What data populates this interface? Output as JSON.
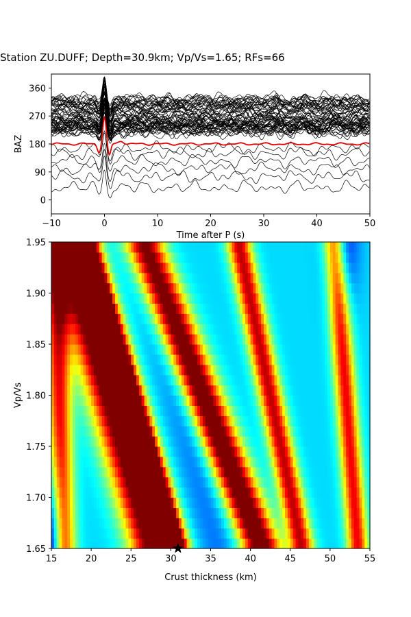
{
  "title": "Station ZU.DUFF; Depth=30.9km; Vp/Vs=1.65; RFs=66",
  "chart_data": [
    {
      "type": "line",
      "title": "Station ZU.DUFF; Depth=30.9km; Vp/Vs=1.65; RFs=66",
      "xlabel": "Time after P (s)",
      "ylabel": "BAZ",
      "xlim": [
        -10,
        50
      ],
      "ylim": [
        -45,
        405
      ],
      "xticks": [
        "−10",
        "0",
        "10",
        "20",
        "30",
        "40",
        "50"
      ],
      "xtick_values": [
        -10,
        0,
        10,
        20,
        30,
        40,
        50
      ],
      "yticks": [
        "0",
        "90",
        "180",
        "270",
        "360"
      ],
      "ytick_values": [
        0,
        90,
        180,
        270,
        360
      ],
      "trace_count": 66,
      "stacked_trace": {
        "baseline": 180,
        "color": "#e00000"
      },
      "trace_color": "#000000",
      "grid": false
    },
    {
      "type": "heatmap",
      "xlabel": "Crust thickness (km)",
      "ylabel": "Vp/Vs",
      "xlim": [
        15,
        55
      ],
      "ylim": [
        1.65,
        1.95
      ],
      "xticks": [
        "15",
        "20",
        "25",
        "30",
        "35",
        "40",
        "45",
        "50",
        "55"
      ],
      "xtick_values": [
        15,
        20,
        25,
        30,
        35,
        40,
        45,
        50,
        55
      ],
      "yticks": [
        "1.65",
        "1.70",
        "1.75",
        "1.80",
        "1.85",
        "1.90",
        "1.95"
      ],
      "ytick_values": [
        1.65,
        1.7,
        1.75,
        1.8,
        1.85,
        1.9,
        1.95
      ],
      "colormap": "jet",
      "best_fit": {
        "thickness": 30.9,
        "vpvs": 1.65,
        "marker": "star"
      },
      "grid": false
    }
  ]
}
